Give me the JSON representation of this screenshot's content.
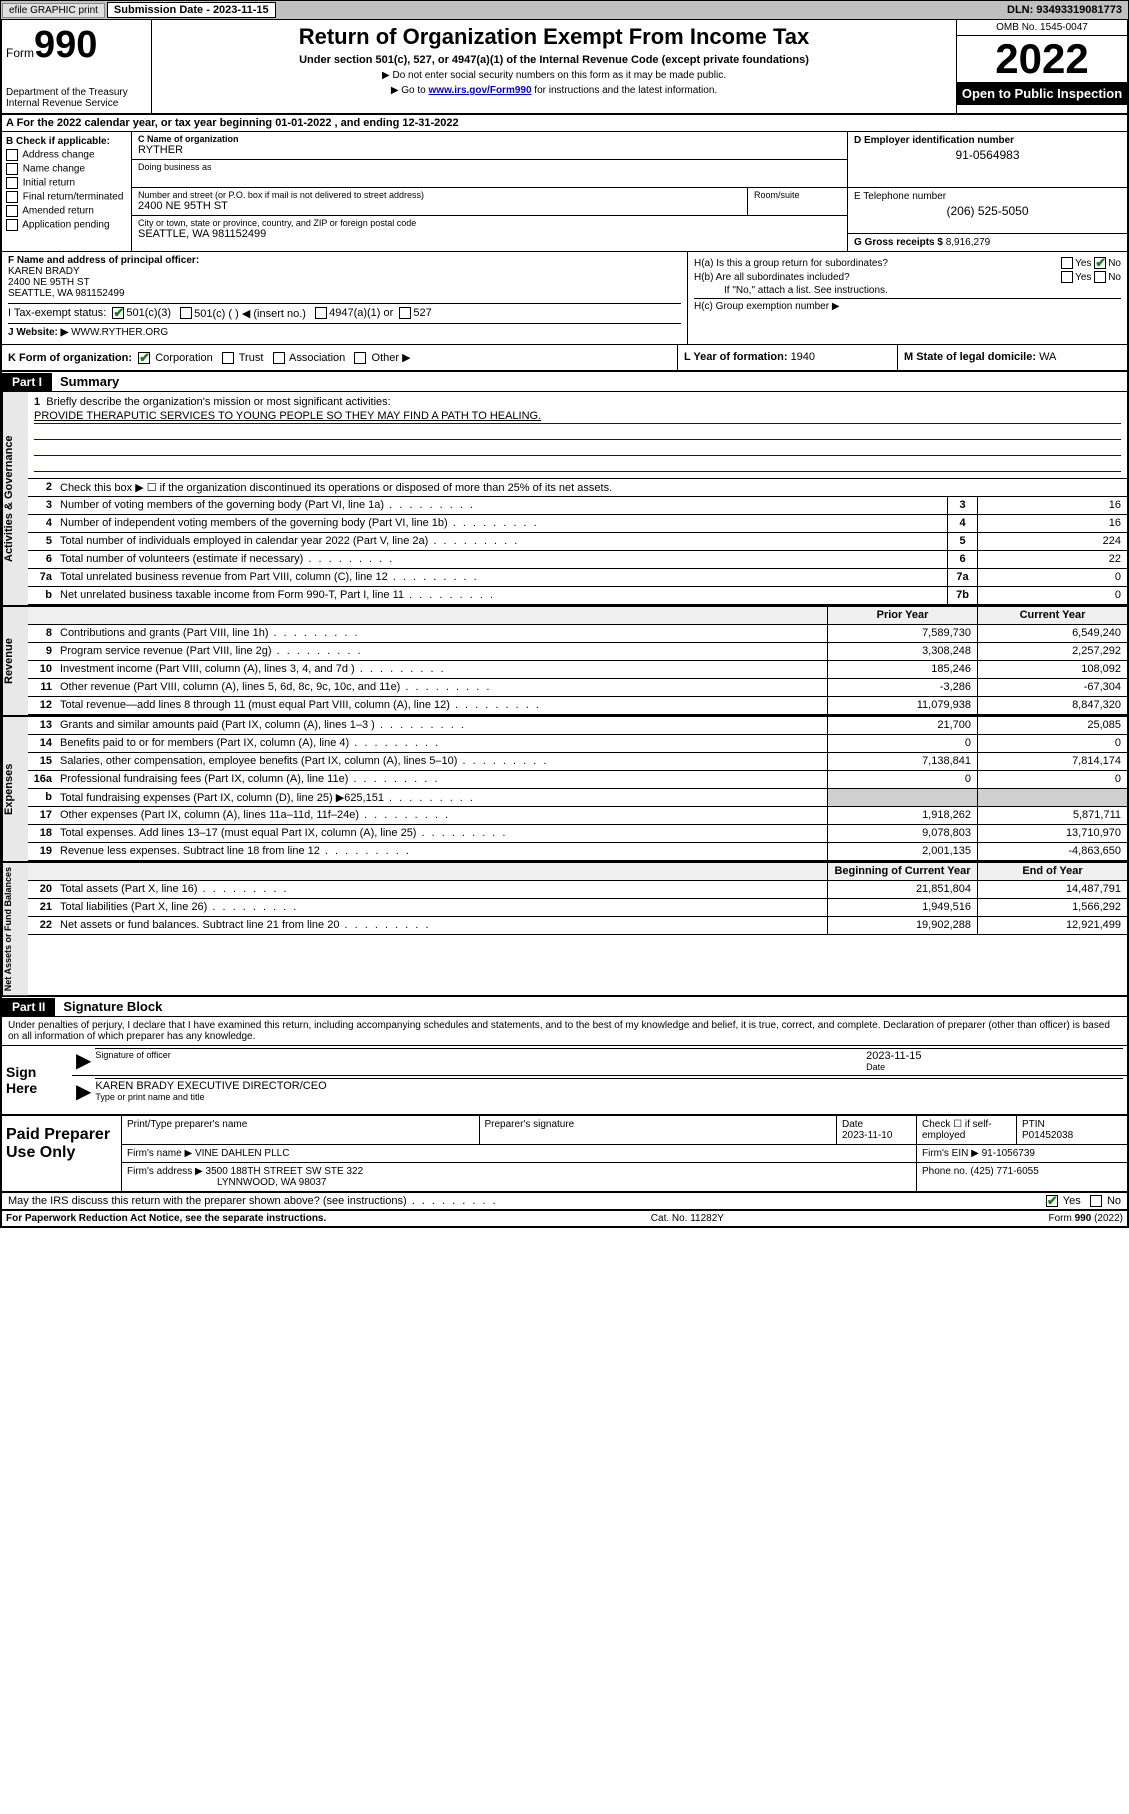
{
  "header": {
    "efile": "efile GRAPHIC print",
    "submission_label": "Submission Date - 2023-11-15",
    "dln": "DLN: 93493319081773"
  },
  "form": {
    "prefix": "Form",
    "number": "990",
    "title": "Return of Organization Exempt From Income Tax",
    "subtitle": "Under section 501(c), 527, or 4947(a)(1) of the Internal Revenue Code (except private foundations)",
    "note1": "▶ Do not enter social security numbers on this form as it may be made public.",
    "note2_pre": "▶ Go to ",
    "note2_link": "www.irs.gov/Form990",
    "note2_post": " for instructions and the latest information.",
    "dept": "Department of the Treasury\nInternal Revenue Service",
    "omb": "OMB No. 1545-0047",
    "year": "2022",
    "open": "Open to Public Inspection"
  },
  "rowA": "A For the 2022 calendar year, or tax year beginning 01-01-2022   , and ending 12-31-2022",
  "colB": {
    "title": "B Check if applicable:",
    "opts": [
      "Address change",
      "Name change",
      "Initial return",
      "Final return/terminated",
      "Amended return",
      "Application pending"
    ]
  },
  "colC": {
    "name_label": "C Name of organization",
    "name": "RYTHER",
    "dba_label": "Doing business as",
    "addr_label": "Number and street (or P.O. box if mail is not delivered to street address)",
    "room_label": "Room/suite",
    "addr": "2400 NE 95TH ST",
    "city_label": "City or town, state or province, country, and ZIP or foreign postal code",
    "city": "SEATTLE, WA  981152499"
  },
  "colD": {
    "label": "D Employer identification number",
    "val": "91-0564983"
  },
  "colE": {
    "label": "E Telephone number",
    "val": "(206) 525-5050"
  },
  "colG": {
    "label": "G Gross receipts $",
    "val": "8,916,279"
  },
  "colF": {
    "label": "F Name and address of principal officer:",
    "name": "KAREN BRADY",
    "addr1": "2400 NE 95TH ST",
    "addr2": "SEATTLE, WA  981152499"
  },
  "colH": {
    "ha": "H(a)  Is this a group return for subordinates?",
    "hb": "H(b)  Are all subordinates included?",
    "hb_note": "If \"No,\" attach a list. See instructions.",
    "hc": "H(c)  Group exemption number ▶",
    "yes": "Yes",
    "no": "No"
  },
  "rowI": {
    "label": "I    Tax-exempt status:",
    "o1": "501(c)(3)",
    "o2": "501(c) (  ) ◀ (insert no.)",
    "o3": "4947(a)(1) or",
    "o4": "527"
  },
  "rowJ": {
    "label": "J    Website: ▶",
    "val": " WWW.RYTHER.ORG"
  },
  "rowK": {
    "label": "K Form of organization:",
    "o1": "Corporation",
    "o2": "Trust",
    "o3": "Association",
    "o4": "Other ▶"
  },
  "rowL": {
    "label": "L Year of formation: ",
    "val": "1940"
  },
  "rowM": {
    "label": "M State of legal domicile: ",
    "val": "WA"
  },
  "part1": {
    "hdr": "Part I",
    "title": "Summary"
  },
  "mission": {
    "num": "1",
    "label": "Briefly describe the organization's mission or most significant activities:",
    "text": "PROVIDE THERAPUTIC SERVICES TO YOUNG PEOPLE SO THEY MAY FIND A PATH TO HEALING."
  },
  "gov": {
    "side": "Activities & Governance",
    "l2": "Check this box ▶ ☐  if the organization discontinued its operations or disposed of more than 25% of its net assets.",
    "rows": [
      {
        "n": "3",
        "d": "Number of voting members of the governing body (Part VI, line 1a)",
        "b": "3",
        "v": "16"
      },
      {
        "n": "4",
        "d": "Number of independent voting members of the governing body (Part VI, line 1b)",
        "b": "4",
        "v": "16"
      },
      {
        "n": "5",
        "d": "Total number of individuals employed in calendar year 2022 (Part V, line 2a)",
        "b": "5",
        "v": "224"
      },
      {
        "n": "6",
        "d": "Total number of volunteers (estimate if necessary)",
        "b": "6",
        "v": "22"
      },
      {
        "n": "7a",
        "d": "Total unrelated business revenue from Part VIII, column (C), line 12",
        "b": "7a",
        "v": "0"
      },
      {
        "n": "b",
        "d": "Net unrelated business taxable income from Form 990-T, Part I, line 11",
        "b": "7b",
        "v": "0"
      }
    ]
  },
  "rev": {
    "side": "Revenue",
    "hdr": {
      "py": "Prior Year",
      "cy": "Current Year"
    },
    "rows": [
      {
        "n": "8",
        "d": "Contributions and grants (Part VIII, line 1h)",
        "py": "7,589,730",
        "cy": "6,549,240"
      },
      {
        "n": "9",
        "d": "Program service revenue (Part VIII, line 2g)",
        "py": "3,308,248",
        "cy": "2,257,292"
      },
      {
        "n": "10",
        "d": "Investment income (Part VIII, column (A), lines 3, 4, and 7d )",
        "py": "185,246",
        "cy": "108,092"
      },
      {
        "n": "11",
        "d": "Other revenue (Part VIII, column (A), lines 5, 6d, 8c, 9c, 10c, and 11e)",
        "py": "-3,286",
        "cy": "-67,304"
      },
      {
        "n": "12",
        "d": "Total revenue—add lines 8 through 11 (must equal Part VIII, column (A), line 12)",
        "py": "11,079,938",
        "cy": "8,847,320"
      }
    ]
  },
  "exp": {
    "side": "Expenses",
    "rows": [
      {
        "n": "13",
        "d": "Grants and similar amounts paid (Part IX, column (A), lines 1–3 )",
        "py": "21,700",
        "cy": "25,085"
      },
      {
        "n": "14",
        "d": "Benefits paid to or for members (Part IX, column (A), line 4)",
        "py": "0",
        "cy": "0"
      },
      {
        "n": "15",
        "d": "Salaries, other compensation, employee benefits (Part IX, column (A), lines 5–10)",
        "py": "7,138,841",
        "cy": "7,814,174"
      },
      {
        "n": "16a",
        "d": "Professional fundraising fees (Part IX, column (A), line 11e)",
        "py": "0",
        "cy": "0"
      },
      {
        "n": "b",
        "d": "Total fundraising expenses (Part IX, column (D), line 25) ▶625,151",
        "py": "",
        "cy": "",
        "shaded": true
      },
      {
        "n": "17",
        "d": "Other expenses (Part IX, column (A), lines 11a–11d, 11f–24e)",
        "py": "1,918,262",
        "cy": "5,871,711"
      },
      {
        "n": "18",
        "d": "Total expenses. Add lines 13–17 (must equal Part IX, column (A), line 25)",
        "py": "9,078,803",
        "cy": "13,710,970"
      },
      {
        "n": "19",
        "d": "Revenue less expenses. Subtract line 18 from line 12",
        "py": "2,001,135",
        "cy": "-4,863,650"
      }
    ]
  },
  "net": {
    "side": "Net Assets or Fund Balances",
    "hdr": {
      "py": "Beginning of Current Year",
      "cy": "End of Year"
    },
    "rows": [
      {
        "n": "20",
        "d": "Total assets (Part X, line 16)",
        "py": "21,851,804",
        "cy": "14,487,791"
      },
      {
        "n": "21",
        "d": "Total liabilities (Part X, line 26)",
        "py": "1,949,516",
        "cy": "1,566,292"
      },
      {
        "n": "22",
        "d": "Net assets or fund balances. Subtract line 21 from line 20",
        "py": "19,902,288",
        "cy": "12,921,499"
      }
    ]
  },
  "part2": {
    "hdr": "Part II",
    "title": "Signature Block"
  },
  "declare": "Under penalties of perjury, I declare that I have examined this return, including accompanying schedules and statements, and to the best of my knowledge and belief, it is true, correct, and complete. Declaration of preparer (other than officer) is based on all information of which preparer has any knowledge.",
  "sign": {
    "here": "Sign Here",
    "sig_label": "Signature of officer",
    "date_label": "Date",
    "date": "2023-11-15",
    "name": "KAREN BRADY  EXECUTIVE DIRECTOR/CEO",
    "name_label": "Type or print name and title"
  },
  "prep": {
    "title": "Paid Preparer Use Only",
    "r1": {
      "c1": "Print/Type preparer's name",
      "c2": "Preparer's signature",
      "c3": "Date",
      "c3v": "2023-11-10",
      "c4": "Check ☐ if self-employed",
      "c5": "PTIN",
      "c5v": "P01452038"
    },
    "r2": {
      "c1": "Firm's name    ▶",
      "c1v": "VINE DAHLEN PLLC",
      "c2": "Firm's EIN ▶",
      "c2v": "91-1056739"
    },
    "r3": {
      "c1": "Firm's address ▶",
      "c1v": "3500 188TH STREET SW STE 322",
      "c1v2": "LYNNWOOD, WA  98037",
      "c2": "Phone no.",
      "c2v": "(425) 771-6055"
    }
  },
  "discuss": "May the IRS discuss this return with the preparer shown above? (see instructions)",
  "footer": {
    "l": "For Paperwork Reduction Act Notice, see the separate instructions.",
    "m": "Cat. No. 11282Y",
    "r": "Form 990 (2022)"
  }
}
